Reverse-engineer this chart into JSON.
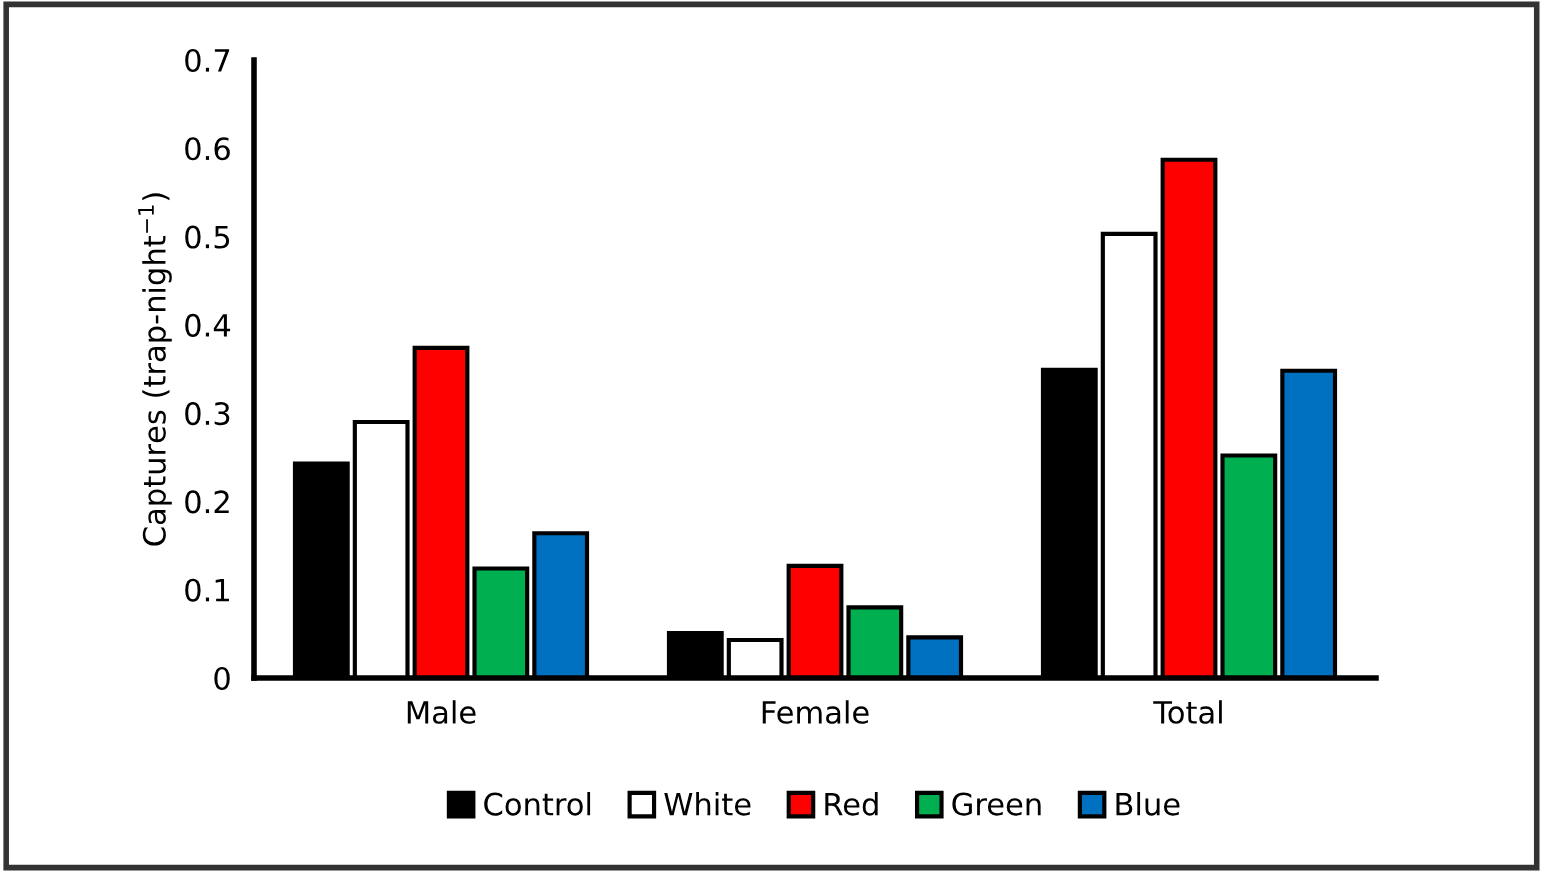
{
  "chart_data": {
    "type": "bar",
    "ylabel": "Captures (trap-night$^{−1}$)",
    "categories": [
      "Male",
      "Female",
      "Total"
    ],
    "series": [
      {
        "name": "Control",
        "color": "#000000",
        "values": [
          0.243,
          0.051,
          0.349
        ]
      },
      {
        "name": "White",
        "color": "#ffffff",
        "values": [
          0.29,
          0.043,
          0.503
        ]
      },
      {
        "name": "Red",
        "color": "#ff0000",
        "values": [
          0.374,
          0.127,
          0.587
        ]
      },
      {
        "name": "Green",
        "color": "#00b050",
        "values": [
          0.124,
          0.08,
          0.252
        ]
      },
      {
        "name": "Blue",
        "color": "#0070c0",
        "values": [
          0.164,
          0.046,
          0.348
        ]
      }
    ],
    "ylim": [
      0,
      0.7
    ],
    "yticks": [
      0,
      0.1,
      0.2,
      0.3,
      0.4,
      0.5,
      0.6,
      0.7
    ],
    "grid": false,
    "legend": "bottom"
  }
}
